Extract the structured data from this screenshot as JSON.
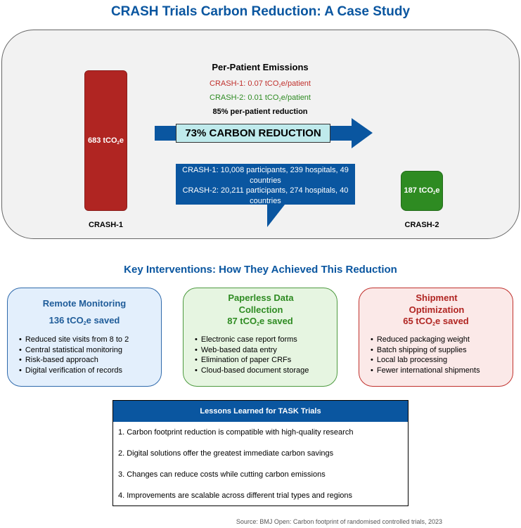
{
  "title": "CRASH Trials Carbon Reduction: A Case Study",
  "comparison": {
    "crash1": {
      "value_text": "683 tCO",
      "sub": "2",
      "unit_suffix": "e",
      "value": 683,
      "label": "CRASH-1",
      "color": "#b02522"
    },
    "crash2": {
      "value_text": "187 tCO",
      "sub": "2",
      "unit_suffix": "e",
      "value": 187,
      "label": "CRASH-2",
      "color": "#2e8b22"
    },
    "per_patient": {
      "title": "Per-Patient Emissions",
      "crash1_prefix": "CRASH-1: 0.07 tCO",
      "crash1_suffix": "e/patient",
      "crash2_prefix": "CRASH-2: 0.01 tCO",
      "crash2_suffix": "e/patient",
      "sub": "2",
      "reduction": "85% per-patient reduction"
    },
    "arrow_label": "73% CARBON REDUCTION",
    "callout": {
      "line1": "CRASH-1: 10,008 participants, 239 hospitals, 49 countries",
      "line2": "CRASH-2: 20,211 participants, 274 hospitals, 40 countries"
    }
  },
  "interventions": {
    "heading": "Key Interventions: How They Achieved This Reduction",
    "cards": [
      {
        "title": "Remote Monitoring",
        "saved_prefix": "136 tCO",
        "saved_sub": "2",
        "saved_suffix": "e saved",
        "color": "#1f5c99",
        "items": [
          "Reduced site visits from 8 to 2",
          "Central statistical monitoring",
          "Risk-based approach",
          "Digital verification of records"
        ]
      },
      {
        "title": "Paperless Data Collection",
        "saved_prefix": "87 tCO",
        "saved_sub": "2",
        "saved_suffix": "e saved",
        "color": "#2e8b22",
        "items": [
          "Electronic case report forms",
          "Web-based data entry",
          "Elimination of paper CRFs",
          "Cloud-based document storage"
        ]
      },
      {
        "title": "Shipment Optimization",
        "saved_prefix": "65 tCO",
        "saved_sub": "2",
        "saved_suffix": "e saved",
        "color": "#b02522",
        "items": [
          "Reduced packaging weight",
          "Batch shipping of supplies",
          "Local lab processing",
          "Fewer international shipments"
        ]
      }
    ]
  },
  "lessons": {
    "heading": "Lessons Learned for TASK Trials",
    "items": [
      "1. Carbon footprint reduction is compatible with high-quality research",
      "2. Digital solutions offer the greatest immediate carbon savings",
      "3. Changes can reduce costs while cutting carbon emissions",
      "4. Improvements are scalable across different trial types and regions"
    ]
  },
  "source": "Source: BMJ Open: Carbon footprint of randomised controlled trials, 2023",
  "colors": {
    "accent_blue": "#0a56a0",
    "arrow_blue": "#0a56a0",
    "label_box": "#bfeaec"
  }
}
